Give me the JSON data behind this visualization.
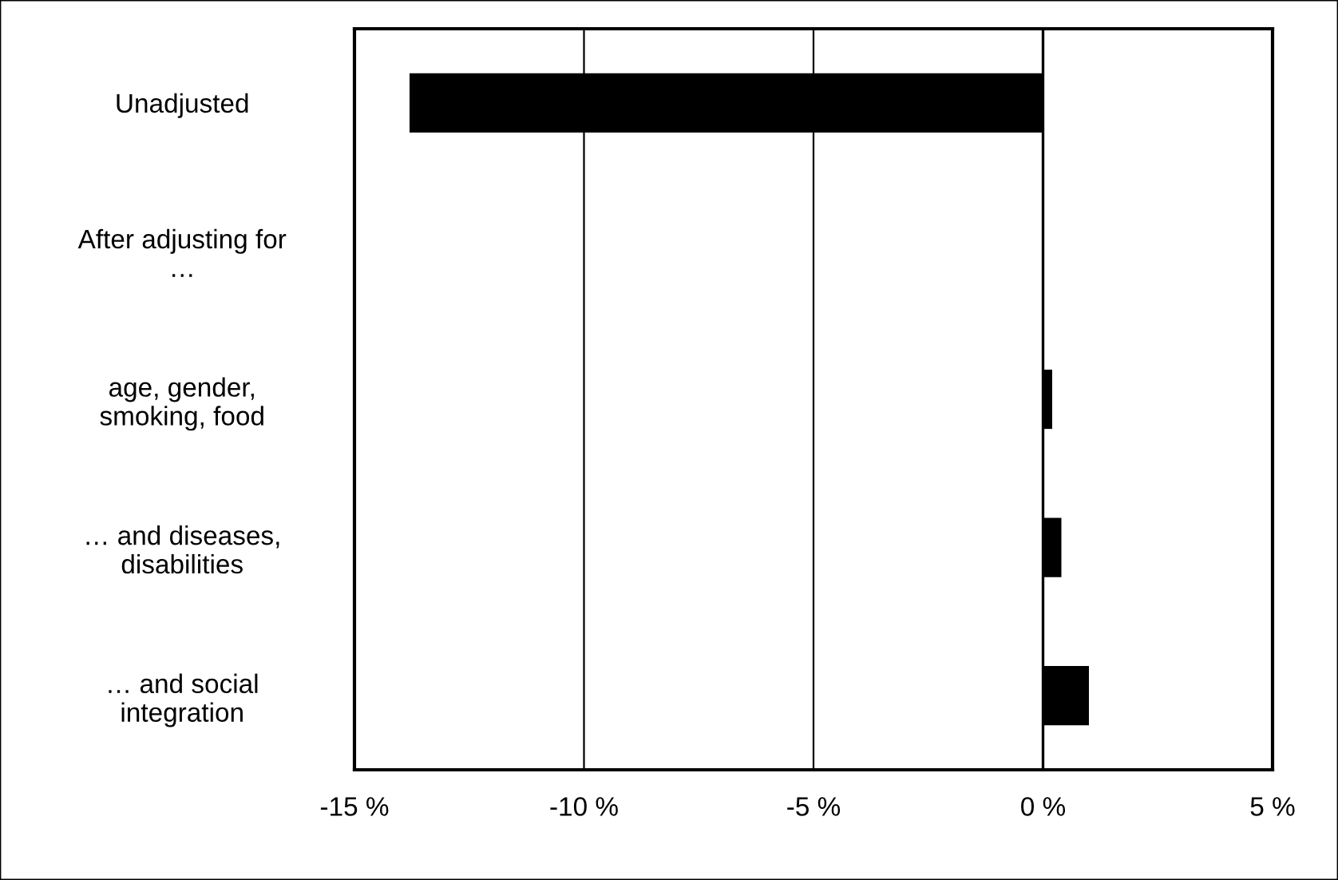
{
  "chart_data": {
    "type": "bar",
    "orientation": "horizontal",
    "categories": [
      "Unadjusted",
      "After adjusting for\n…",
      "age, gender,\nsmoking, food",
      "… and diseases,\ndisabilities",
      "… and social\nintegration"
    ],
    "values": [
      -13.8,
      null,
      0.2,
      0.4,
      1.0
    ],
    "color": "#000000",
    "xlim": [
      -15,
      5
    ],
    "xticks": [
      {
        "value": -15,
        "label": "-15 %"
      },
      {
        "value": -10,
        "label": "-10 %"
      },
      {
        "value": -5,
        "label": "-5 %"
      },
      {
        "value": 0,
        "label": "0 %"
      },
      {
        "value": 5,
        "label": "5 %"
      }
    ],
    "grid": "x"
  }
}
